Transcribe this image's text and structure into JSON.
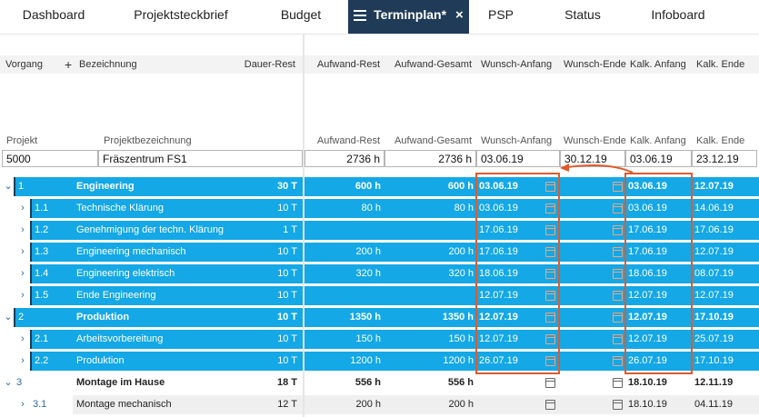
{
  "tabs": [
    {
      "label": "Dashboard"
    },
    {
      "label": "Projektsteckbrief"
    },
    {
      "label": "Budget"
    },
    {
      "label": "Terminplan*",
      "active": true
    },
    {
      "label": "PSP"
    },
    {
      "label": "Status"
    },
    {
      "label": "Infoboard"
    }
  ],
  "grid_header": {
    "vorgang": "Vorgang",
    "plus": "+",
    "bezeichnung": "Bezeichnung",
    "dauer_rest": "Dauer-Rest",
    "aufwand_rest": "Aufwand-Rest",
    "aufwand_gesamt": "Aufwand-Gesamt",
    "wunsch_anfang": "Wunsch-Anfang",
    "wunsch_ende": "Wunsch-Ende",
    "kalk_anfang": "Kalk. Anfang",
    "kalk_ende": "Kalk. Ende"
  },
  "project_header": {
    "projekt": "Projekt",
    "projektbezeichnung": "Projektbezeichnung",
    "aufwand_rest": "Aufwand-Rest",
    "aufwand_gesamt": "Aufwand-Gesamt",
    "wunsch_anfang": "Wunsch-Anfang",
    "wunsch_ende": "Wunsch-Ende",
    "kalk_anfang": "Kalk. Anfang",
    "kalk_ende": "Kalk. Ende"
  },
  "project": {
    "id": "5000",
    "name": "Fräszentrum FS1",
    "aufwand_rest": "2736 h",
    "aufwand_gesamt": "2736 h",
    "wunsch_anfang": "03.06.19",
    "wunsch_ende": "30.12.19",
    "kalk_anfang": "03.06.19",
    "kalk_ende": "23.12.19"
  },
  "rows": [
    {
      "chev": "⌄",
      "id": "1",
      "name": "Engineering",
      "dauer": "30 T",
      "aufwand_rest": "600 h",
      "aufwand_gesamt": "600 h",
      "wunsch_anfang": "03.06.19",
      "wunsch_ende": "",
      "kalk_anfang": "03.06.19",
      "kalk_ende": "12.07.19",
      "style": "blue",
      "bold": true,
      "level": 0
    },
    {
      "chev": "›",
      "id": "1.1",
      "name": "Technische Klärung",
      "dauer": "10 T",
      "aufwand_rest": "80 h",
      "aufwand_gesamt": "80 h",
      "wunsch_anfang": "03.06.19",
      "wunsch_ende": "",
      "kalk_anfang": "03.06.19",
      "kalk_ende": "14.06.19",
      "style": "blue",
      "bold": false,
      "level": 1
    },
    {
      "chev": "›",
      "id": "1.2",
      "name": "Genehmigung der techn. Klärung",
      "dauer": "1 T",
      "aufwand_rest": "",
      "aufwand_gesamt": "",
      "wunsch_anfang": "17.06.19",
      "wunsch_ende": "",
      "kalk_anfang": "17.06.19",
      "kalk_ende": "17.06.19",
      "style": "blue",
      "bold": false,
      "level": 1
    },
    {
      "chev": "›",
      "id": "1.3",
      "name": "Engineering mechanisch",
      "dauer": "10 T",
      "aufwand_rest": "200 h",
      "aufwand_gesamt": "200 h",
      "wunsch_anfang": "17.06.19",
      "wunsch_ende": "",
      "kalk_anfang": "17.06.19",
      "kalk_ende": "12.07.19",
      "style": "blue",
      "bold": false,
      "level": 1
    },
    {
      "chev": "›",
      "id": "1.4",
      "name": "Engineering elektrisch",
      "dauer": "10 T",
      "aufwand_rest": "320 h",
      "aufwand_gesamt": "320 h",
      "wunsch_anfang": "18.06.19",
      "wunsch_ende": "",
      "kalk_anfang": "18.06.19",
      "kalk_ende": "08.07.19",
      "style": "blue",
      "bold": false,
      "level": 1
    },
    {
      "chev": "›",
      "id": "1.5",
      "name": "Ende Engineering",
      "dauer": "10 T",
      "aufwand_rest": "",
      "aufwand_gesamt": "",
      "wunsch_anfang": "12.07.19",
      "wunsch_ende": "",
      "kalk_anfang": "12.07.19",
      "kalk_ende": "12.07.19",
      "style": "blue",
      "bold": false,
      "level": 1
    },
    {
      "chev": "⌄",
      "id": "2",
      "name": "Produktion",
      "dauer": "10 T",
      "aufwand_rest": "1350 h",
      "aufwand_gesamt": "1350 h",
      "wunsch_anfang": "12.07.19",
      "wunsch_ende": "",
      "kalk_anfang": "12.07.19",
      "kalk_ende": "17.10.19",
      "style": "blue",
      "bold": true,
      "level": 0
    },
    {
      "chev": "›",
      "id": "2.1",
      "name": "Arbeitsvorbereitung",
      "dauer": "10 T",
      "aufwand_rest": "150 h",
      "aufwand_gesamt": "150 h",
      "wunsch_anfang": "12.07.19",
      "wunsch_ende": "",
      "kalk_anfang": "12.07.19",
      "kalk_ende": "25.07.19",
      "style": "blue",
      "bold": false,
      "level": 1
    },
    {
      "chev": "›",
      "id": "2.2",
      "name": "Produktion",
      "dauer": "10 T",
      "aufwand_rest": "1200 h",
      "aufwand_gesamt": "1200 h",
      "wunsch_anfang": "26.07.19",
      "wunsch_ende": "",
      "kalk_anfang": "26.07.19",
      "kalk_ende": "17.10.19",
      "style": "blue",
      "bold": false,
      "level": 1
    },
    {
      "chev": "⌄",
      "id": "3",
      "name": "Montage im Hause",
      "dauer": "18 T",
      "aufwand_rest": "556 h",
      "aufwand_gesamt": "556 h",
      "wunsch_anfang": "",
      "wunsch_ende": "",
      "kalk_anfang": "18.10.19",
      "kalk_ende": "12.11.19",
      "style": "white",
      "bold": true,
      "level": 0
    },
    {
      "chev": "›",
      "id": "3.1",
      "name": "Montage mechanisch",
      "dauer": "12 T",
      "aufwand_rest": "200 h",
      "aufwand_gesamt": "200 h",
      "wunsch_anfang": "",
      "wunsch_ende": "",
      "kalk_anfang": "18.10.19",
      "kalk_ende": "04.11.19",
      "style": "grey",
      "bold": false,
      "level": 1
    }
  ],
  "colors": {
    "row_blue": "#14a8e6",
    "tab_active": "#1f3b57",
    "highlight": "#e05a2b"
  },
  "icons": {
    "calendar": "calendar-icon",
    "menu": "menu-icon",
    "close": "close-icon",
    "expand": "chevron-icon"
  }
}
